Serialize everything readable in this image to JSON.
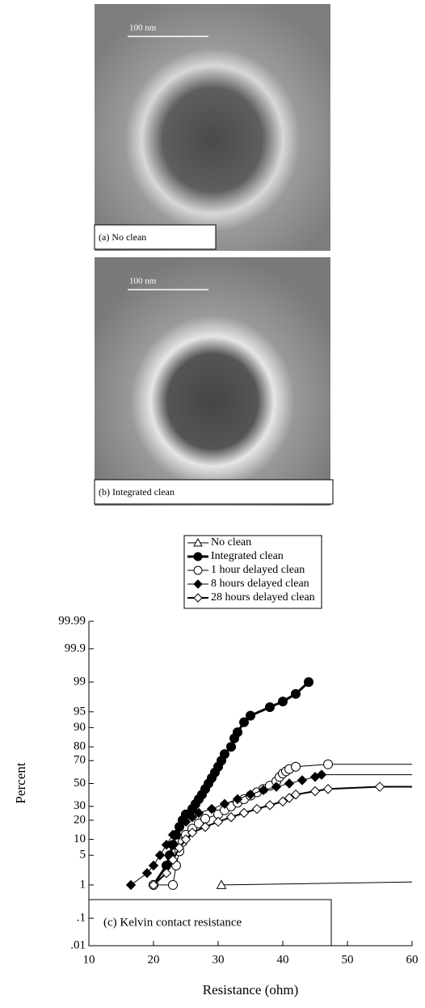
{
  "images": [
    {
      "scale_bar": "100 nm",
      "caption": "(a) No clean"
    },
    {
      "scale_bar": "100 nm",
      "caption": "(b) Integrated clean"
    }
  ],
  "chart_data": {
    "type": "line",
    "y_scale": "probability",
    "x_label": "Resistance (ohm)",
    "y_label": "Percent",
    "annotation": "(c) Kelvin contact resistance",
    "xlim": [
      10,
      60
    ],
    "xticks": [
      10,
      20,
      30,
      40,
      50,
      60
    ],
    "ylim": [
      0.01,
      99.99
    ],
    "yticks": [
      99.99,
      99.9,
      99,
      95,
      90,
      80,
      70,
      50,
      30,
      20,
      10,
      5,
      1,
      {
        "value": 0.1,
        "label": ".1"
      },
      {
        "value": 0.01,
        "label": ".01"
      }
    ],
    "series": [
      {
        "name": "No clean",
        "color": "#000000",
        "marker": "triangle",
        "filled": false,
        "linewidth": 1,
        "x": [
          30.5,
          60
        ],
        "values": [
          1,
          1.2
        ]
      },
      {
        "name": "Integrated clean",
        "color": "#000000",
        "marker": "circle",
        "filled": true,
        "linewidth": 3,
        "x": [
          20,
          22,
          22.5,
          23,
          23.5,
          24,
          24.5,
          25,
          26,
          26.5,
          27,
          27.5,
          28,
          28.5,
          29,
          29.5,
          30,
          30.5,
          31,
          32,
          32.5,
          33,
          34,
          35,
          38,
          40,
          42,
          44
        ],
        "values": [
          1,
          3,
          5,
          8,
          12,
          16,
          20,
          24,
          28,
          32,
          36,
          40,
          45,
          50,
          55,
          60,
          65,
          70,
          75,
          80,
          85,
          88,
          92,
          94,
          96,
          97,
          98,
          99
        ]
      },
      {
        "name": "1 hour delayed clean",
        "color": "#000000",
        "marker": "circle",
        "filled": false,
        "linewidth": 1,
        "x": [
          20,
          23,
          23.5,
          24,
          24.5,
          25,
          26,
          27,
          28,
          30,
          31,
          32,
          33,
          34,
          35,
          36,
          37,
          38,
          39,
          39.5,
          40,
          40.5,
          41,
          42,
          47,
          60
        ],
        "values": [
          1,
          1,
          3,
          6,
          9,
          12,
          15,
          18,
          21,
          24,
          27,
          30,
          33,
          36,
          39,
          42,
          45,
          48,
          52,
          56,
          59,
          61,
          63,
          65,
          67,
          67
        ]
      },
      {
        "name": "8 hours delayed clean",
        "color": "#000000",
        "marker": "diamond",
        "filled": true,
        "linewidth": 1,
        "x": [
          16.5,
          19,
          20,
          21,
          22,
          23,
          24,
          25,
          26,
          27,
          29,
          31,
          33,
          35,
          37,
          39,
          41,
          43,
          45,
          46,
          60
        ],
        "values": [
          1,
          2,
          3,
          5,
          8,
          12,
          16,
          19,
          22,
          25,
          28,
          32,
          36,
          40,
          44,
          47,
          50,
          53,
          56,
          58,
          58
        ]
      },
      {
        "name": "28 hours delayed clean",
        "color": "#000000",
        "marker": "diamond",
        "filled": false,
        "linewidth": 2,
        "x": [
          20,
          22,
          23,
          24,
          25,
          26,
          28,
          30,
          32,
          34,
          36,
          38,
          40,
          41,
          42,
          45,
          47,
          55,
          60
        ],
        "values": [
          1,
          2,
          4,
          7,
          10,
          13,
          16,
          19,
          22,
          25,
          28,
          31,
          34,
          37,
          40,
          43,
          45,
          47,
          47
        ]
      }
    ]
  }
}
